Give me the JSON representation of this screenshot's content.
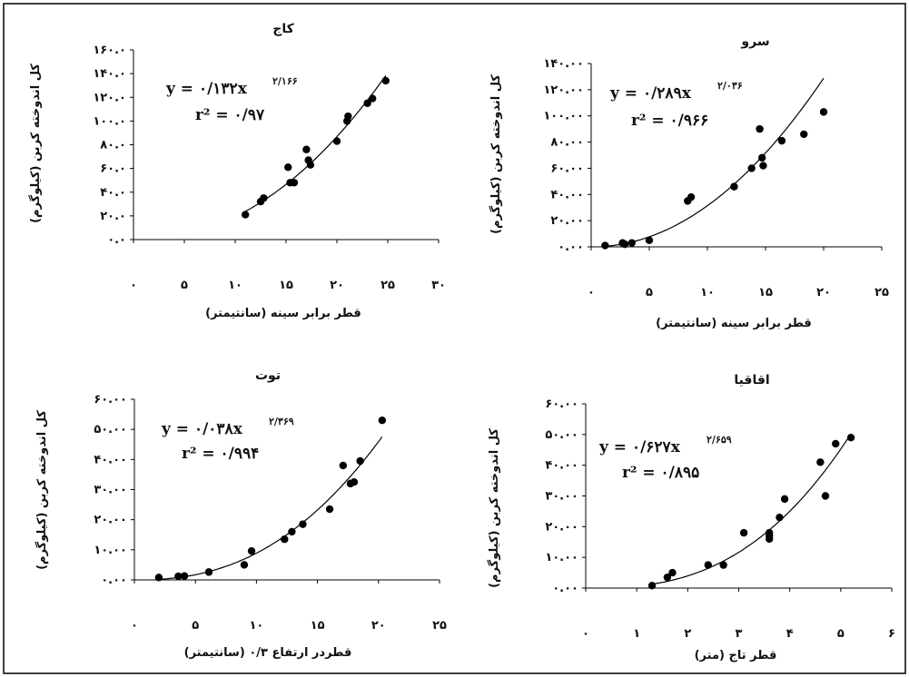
{
  "chart_data": [
    {
      "type": "scatter",
      "title": "کاج",
      "xlabel": "قطر برابر سینه (سانتیمتر)",
      "ylabel": "کل اندوخته کربن (کیلوگرم)",
      "xlim": [
        0,
        30
      ],
      "ylim": [
        0,
        160
      ],
      "x_ticks": [
        0,
        5,
        10,
        15,
        20,
        25,
        30
      ],
      "x_tick_labels": [
        "۰",
        "۵",
        "۱۰",
        "۱۵",
        "۲۰",
        "۲۵",
        "۳۰"
      ],
      "y_ticks": [
        0,
        20,
        40,
        60,
        80,
        100,
        120,
        140,
        160
      ],
      "y_tick_labels": [
        "۰.۰",
        "۲۰.۰",
        "۴۰.۰",
        "۶۰.۰",
        "۸۰.۰",
        "۱۰۰.۰",
        "۱۲۰.۰",
        "۱۴۰.۰",
        "۱۶۰.۰"
      ],
      "equation_line": "y = ۰/۱۳۲x",
      "equation_exponent": "۲/۱۶۶",
      "r2_line": "r² = ۰/۹۷",
      "trendline": {
        "form": "power",
        "a": 0.132,
        "b": 2.166,
        "x_range": [
          11,
          24.8
        ]
      },
      "points": [
        {
          "x": 11,
          "y": 21
        },
        {
          "x": 12.5,
          "y": 32
        },
        {
          "x": 12.8,
          "y": 35
        },
        {
          "x": 15.2,
          "y": 61
        },
        {
          "x": 15.4,
          "y": 48
        },
        {
          "x": 15.8,
          "y": 48
        },
        {
          "x": 17,
          "y": 76
        },
        {
          "x": 17.2,
          "y": 67
        },
        {
          "x": 17.4,
          "y": 63
        },
        {
          "x": 20,
          "y": 83
        },
        {
          "x": 21,
          "y": 100
        },
        {
          "x": 21.1,
          "y": 104
        },
        {
          "x": 23,
          "y": 115
        },
        {
          "x": 23.5,
          "y": 119
        },
        {
          "x": 24.8,
          "y": 134
        }
      ]
    },
    {
      "type": "scatter",
      "title": "سرو",
      "xlabel": "قطر برابر سینه (سانتیمتر)",
      "ylabel": "کل اندوخته کربن (کیلوگرم)",
      "xlim": [
        0,
        25
      ],
      "ylim": [
        0,
        140
      ],
      "x_ticks": [
        0,
        5,
        10,
        15,
        20,
        25
      ],
      "x_tick_labels": [
        "۰",
        "۵",
        "۱۰",
        "۱۵",
        "۲۰",
        "۲۵"
      ],
      "y_ticks": [
        0,
        20,
        40,
        60,
        80,
        100,
        120,
        140
      ],
      "y_tick_labels": [
        "۰.۰۰",
        "۲۰.۰۰",
        "۴۰.۰۰",
        "۶۰.۰۰",
        "۸۰.۰۰",
        "۱۰۰.۰۰",
        "۱۲۰.۰۰",
        "۱۴۰.۰۰"
      ],
      "equation_line": "y = ۰/۲۸۹x",
      "equation_exponent": "۲/۰۳۶",
      "r2_line": "r² = ۰/۹۶۶",
      "trendline": {
        "form": "power",
        "a": 0.289,
        "b": 2.036,
        "x_range": [
          1,
          20
        ]
      },
      "points": [
        {
          "x": 1.2,
          "y": 1
        },
        {
          "x": 2.7,
          "y": 3
        },
        {
          "x": 2.9,
          "y": 2
        },
        {
          "x": 3.5,
          "y": 3
        },
        {
          "x": 5,
          "y": 5
        },
        {
          "x": 8.3,
          "y": 35
        },
        {
          "x": 8.6,
          "y": 38
        },
        {
          "x": 12.3,
          "y": 46
        },
        {
          "x": 13.8,
          "y": 60
        },
        {
          "x": 14.5,
          "y": 90
        },
        {
          "x": 14.7,
          "y": 68
        },
        {
          "x": 14.8,
          "y": 62
        },
        {
          "x": 16.4,
          "y": 81
        },
        {
          "x": 18.3,
          "y": 86
        },
        {
          "x": 20,
          "y": 103
        }
      ]
    },
    {
      "type": "scatter",
      "title": "توت",
      "xlabel": "قطردر ارتفاع ۰/۳ (سانتیمتر)",
      "ylabel": "کل اندوخته کربن (کیلوگرم)",
      "xlim": [
        0,
        25
      ],
      "ylim": [
        0,
        60
      ],
      "x_ticks": [
        0,
        5,
        10,
        15,
        20,
        25
      ],
      "x_tick_labels": [
        "۰",
        "۵",
        "۱۰",
        "۱۵",
        "۲۰",
        "۲۵"
      ],
      "y_ticks": [
        0,
        10,
        20,
        30,
        40,
        50,
        60
      ],
      "y_tick_labels": [
        "۰.۰۰",
        "۱۰.۰۰",
        "۲۰.۰۰",
        "۳۰.۰۰",
        "۴۰.۰۰",
        "۵۰.۰۰",
        "۶۰.۰۰"
      ],
      "equation_line": "y = ۰/۰۳۸x",
      "equation_exponent": "۲/۳۶۹",
      "r2_line": "r² = ۰/۹۹۴",
      "trendline": {
        "form": "power",
        "a": 0.038,
        "b": 2.369,
        "x_range": [
          2,
          20.3
        ]
      },
      "points": [
        {
          "x": 2,
          "y": 0.8
        },
        {
          "x": 3.6,
          "y": 1.2
        },
        {
          "x": 4.1,
          "y": 1.3
        },
        {
          "x": 6.1,
          "y": 2.6
        },
        {
          "x": 9,
          "y": 5
        },
        {
          "x": 9.6,
          "y": 9.6
        },
        {
          "x": 12.3,
          "y": 13.5
        },
        {
          "x": 12.9,
          "y": 16
        },
        {
          "x": 13.8,
          "y": 18.5
        },
        {
          "x": 16,
          "y": 23.5
        },
        {
          "x": 17.1,
          "y": 38
        },
        {
          "x": 17.7,
          "y": 32
        },
        {
          "x": 18,
          "y": 32.5
        },
        {
          "x": 18.5,
          "y": 39.5
        },
        {
          "x": 20.3,
          "y": 53
        }
      ]
    },
    {
      "type": "scatter",
      "title": "اقاقیا",
      "xlabel": "قطر تاج (متر)",
      "ylabel": "کل اندوخته کربن (کیلوگرم)",
      "xlim": [
        0,
        6
      ],
      "ylim": [
        0,
        60
      ],
      "x_ticks": [
        0,
        1,
        2,
        3,
        4,
        5,
        6
      ],
      "x_tick_labels": [
        "۰",
        "۱",
        "۲",
        "۳",
        "۴",
        "۵",
        "۶"
      ],
      "y_ticks": [
        0,
        10,
        20,
        30,
        40,
        50,
        60
      ],
      "y_tick_labels": [
        "۰.۰۰",
        "۱۰.۰۰",
        "۲۰.۰۰",
        "۳۰.۰۰",
        "۴۰.۰۰",
        "۵۰.۰۰",
        "۶۰.۰۰"
      ],
      "equation_line": "y = ۰/۶۲۷x",
      "equation_exponent": "۲/۶۵۹",
      "r2_line": "r² = ۰/۸۹۵",
      "trendline": {
        "form": "power",
        "a": 0.627,
        "b": 2.659,
        "x_range": [
          1.3,
          5.2
        ]
      },
      "points": [
        {
          "x": 1.3,
          "y": 0.8
        },
        {
          "x": 1.6,
          "y": 3.5
        },
        {
          "x": 1.7,
          "y": 5
        },
        {
          "x": 2.4,
          "y": 7.5
        },
        {
          "x": 2.7,
          "y": 7.5
        },
        {
          "x": 3.1,
          "y": 18
        },
        {
          "x": 3.6,
          "y": 16
        },
        {
          "x": 3.6,
          "y": 17
        },
        {
          "x": 3.6,
          "y": 18
        },
        {
          "x": 3.8,
          "y": 23
        },
        {
          "x": 3.9,
          "y": 29
        },
        {
          "x": 4.6,
          "y": 41
        },
        {
          "x": 4.7,
          "y": 30
        },
        {
          "x": 4.9,
          "y": 47
        },
        {
          "x": 5.2,
          "y": 49
        }
      ]
    }
  ]
}
